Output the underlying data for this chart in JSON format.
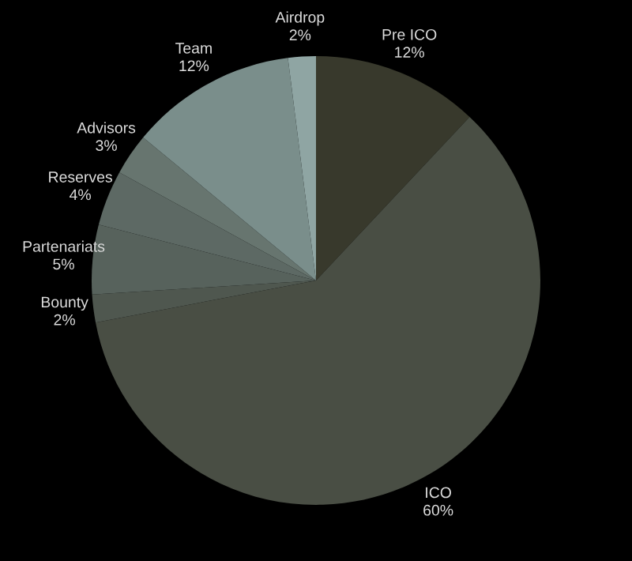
{
  "chart_data": {
    "type": "pie",
    "categories": [
      "Pre ICO",
      "ICO",
      "Bounty",
      "Partenariats",
      "Reserves",
      "Advisors",
      "Team",
      "Airdrop"
    ],
    "values": [
      12,
      60,
      2,
      5,
      4,
      3,
      12,
      2
    ],
    "value_labels": [
      "12%",
      "60%",
      "2%",
      "5%",
      "4%",
      "3%",
      "12%",
      "2%"
    ],
    "colors": [
      "#38392c",
      "#494e44",
      "#4f574f",
      "#57625c",
      "#5d6964",
      "#67756f",
      "#7a8e8b",
      "#8fa5a3"
    ],
    "legend": false
  }
}
